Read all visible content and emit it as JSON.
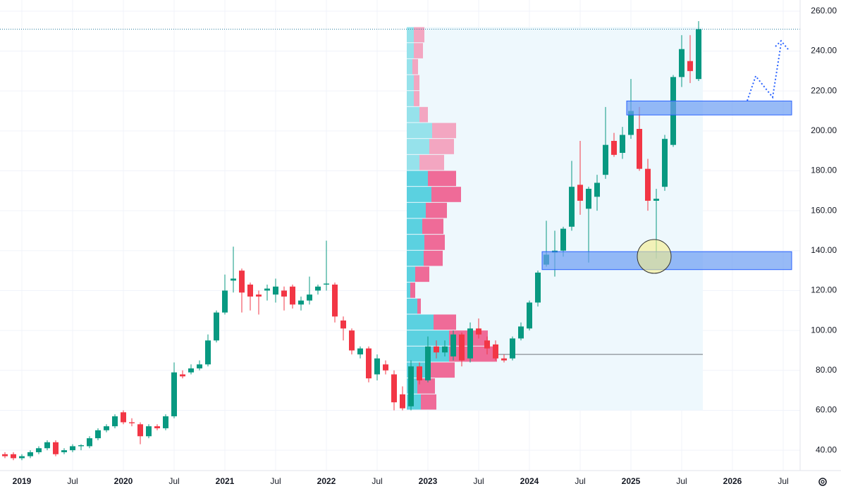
{
  "chart_data": {
    "type": "candlestick",
    "x": [
      "2018-11",
      "2018-12",
      "2019-01",
      "2019-02",
      "2019-03",
      "2019-04",
      "2019-05",
      "2019-06",
      "2019-07",
      "2019-08",
      "2019-09",
      "2019-10",
      "2019-11",
      "2019-12",
      "2020-01",
      "2020-02",
      "2020-03",
      "2020-04",
      "2020-05",
      "2020-06",
      "2020-07",
      "2020-08",
      "2020-09",
      "2020-10",
      "2020-11",
      "2020-12",
      "2021-01",
      "2021-02",
      "2021-03",
      "2021-04",
      "2021-05",
      "2021-06",
      "2021-07",
      "2021-08",
      "2021-09",
      "2021-10",
      "2021-11",
      "2021-12",
      "2022-01",
      "2022-02",
      "2022-03",
      "2022-04",
      "2022-05",
      "2022-06",
      "2022-07",
      "2022-08",
      "2022-09",
      "2022-10",
      "2022-11",
      "2022-12",
      "2023-01",
      "2023-02",
      "2023-03",
      "2023-04",
      "2023-05",
      "2023-06",
      "2023-07",
      "2023-08",
      "2023-09",
      "2023-10",
      "2023-11",
      "2023-12",
      "2024-01",
      "2024-02",
      "2024-03",
      "2024-04",
      "2024-05",
      "2024-06",
      "2024-07",
      "2024-08",
      "2024-09",
      "2024-10",
      "2024-11",
      "2024-12",
      "2025-01",
      "2025-02",
      "2025-03",
      "2025-04",
      "2025-05",
      "2025-06",
      "2025-07",
      "2025-08",
      "2025-09"
    ],
    "open": [
      38,
      38,
      36,
      37,
      39,
      41,
      44,
      39,
      40,
      42,
      42,
      46,
      50,
      52,
      59,
      54,
      53,
      47,
      52,
      51,
      57,
      78,
      79,
      81,
      83,
      95,
      109,
      125,
      130,
      123,
      118,
      120,
      118,
      120,
      122,
      113,
      115,
      120,
      123,
      123,
      105,
      100,
      88,
      91,
      78,
      83,
      78,
      68,
      62,
      82,
      75,
      92,
      89,
      87,
      98,
      86,
      101,
      95,
      93,
      86,
      86,
      96,
      101,
      114,
      133,
      139,
      140,
      152,
      173,
      161,
      167,
      178,
      195,
      189,
      198,
      201,
      181,
      165,
      172,
      193,
      227,
      235,
      226
    ],
    "high": [
      39,
      39,
      38,
      40,
      42,
      45,
      45,
      41,
      43,
      43,
      47,
      51,
      53,
      58,
      60,
      56,
      54,
      53,
      53,
      58,
      84,
      80,
      83,
      85,
      98,
      110,
      128,
      142,
      131,
      124,
      120,
      123,
      126,
      122,
      123,
      117,
      127,
      123,
      145,
      124,
      107,
      101,
      92,
      92,
      88,
      85,
      80,
      72,
      85,
      84,
      97,
      95,
      95,
      100,
      99,
      104,
      106,
      97,
      95,
      88,
      97,
      104,
      115,
      130,
      155,
      150,
      152,
      185,
      195,
      172,
      178,
      212,
      199,
      202,
      226,
      212,
      186,
      171,
      198,
      228,
      248,
      248,
      255
    ],
    "low": [
      36,
      35,
      35,
      36,
      38,
      40,
      37,
      38,
      39,
      40,
      41,
      45,
      49,
      51,
      53,
      52,
      43,
      46,
      50,
      50,
      56,
      76,
      78,
      80,
      82,
      94,
      108,
      119,
      109,
      110,
      108,
      115,
      114,
      110,
      111,
      110,
      113,
      118,
      120,
      104,
      95,
      88,
      86,
      74,
      75,
      78,
      60,
      60,
      60,
      73,
      74,
      86,
      87,
      85,
      82,
      84,
      96,
      88,
      85,
      84,
      85,
      95,
      100,
      112,
      132,
      127,
      137,
      150,
      158,
      134,
      160,
      176,
      187,
      186,
      196,
      180,
      160,
      136,
      170,
      192,
      222,
      224,
      225
    ],
    "close": [
      37,
      36,
      37,
      39,
      41,
      44,
      38,
      40,
      42,
      42.5,
      46,
      50,
      52,
      57,
      54,
      53.5,
      47,
      52,
      51,
      57,
      79,
      77,
      81,
      83,
      95,
      109,
      120,
      126,
      119,
      117,
      117,
      121,
      122,
      117,
      113,
      115,
      118,
      122,
      123.5,
      107,
      101,
      90,
      91,
      76,
      86,
      80,
      64,
      61,
      82,
      75,
      92,
      89,
      92,
      98,
      85,
      101,
      98,
      91,
      86,
      85,
      96,
      102,
      114,
      129,
      138,
      140,
      151,
      172,
      165,
      171,
      174,
      193,
      188,
      198,
      210,
      181,
      165,
      166,
      196,
      227,
      241,
      230,
      251
    ],
    "up_color": "#089981",
    "down_color": "#f23645",
    "ylim": [
      29.8,
      265.6
    ],
    "yticks": [
      {
        "value": 40,
        "label": "40.00"
      },
      {
        "value": 60,
        "label": "60.00"
      },
      {
        "value": 80,
        "label": "80.00"
      },
      {
        "value": 100,
        "label": "100.00"
      },
      {
        "value": 120,
        "label": "120.00"
      },
      {
        "value": 140,
        "label": "140.00"
      },
      {
        "value": 160,
        "label": "160.00"
      },
      {
        "value": 180,
        "label": "180.00"
      },
      {
        "value": 200,
        "label": "200.00"
      },
      {
        "value": 220,
        "label": "220.00"
      },
      {
        "value": 240,
        "label": "240.00"
      },
      {
        "value": 260,
        "label": "260.00"
      }
    ],
    "xlim": [
      "2018-10",
      "2026-09"
    ],
    "xticks": [
      {
        "value": "2019-01",
        "label": "2019"
      },
      {
        "value": "2019-07",
        "label": "Jul"
      },
      {
        "value": "2020-01",
        "label": "2020"
      },
      {
        "value": "2020-07",
        "label": "Jul"
      },
      {
        "value": "2021-01",
        "label": "2021"
      },
      {
        "value": "2021-07",
        "label": "Jul"
      },
      {
        "value": "2022-01",
        "label": "2022"
      },
      {
        "value": "2022-07",
        "label": "Jul"
      },
      {
        "value": "2023-01",
        "label": "2023"
      },
      {
        "value": "2023-07",
        "label": "Jul"
      },
      {
        "value": "2024-01",
        "label": "2024"
      },
      {
        "value": "2024-07",
        "label": "Jul"
      },
      {
        "value": "2025-01",
        "label": "2025"
      },
      {
        "value": "2025-07",
        "label": "Jul"
      },
      {
        "value": "2026-01",
        "label": "2026"
      },
      {
        "value": "2026-07",
        "label": "Jul"
      }
    ],
    "grid": true,
    "price_line": 251,
    "price_line_color": "#2a7f9e",
    "profile": {
      "from": "2022-11",
      "to": "2025-09",
      "bins": [
        60,
        68,
        76,
        84,
        92,
        100,
        108,
        116,
        124,
        132,
        140,
        148,
        156,
        164,
        172,
        180,
        188,
        196,
        204,
        212,
        220,
        228,
        236,
        244,
        252
      ],
      "up": [
        20,
        15,
        33,
        60,
        60,
        38,
        15,
        5,
        12,
        24,
        25,
        22,
        27,
        35,
        30,
        18,
        32,
        36,
        18,
        10,
        10,
        8,
        10,
        10
      ],
      "down": [
        22,
        25,
        35,
        68,
        55,
        32,
        5,
        7,
        20,
        27,
        29,
        30,
        30,
        42,
        40,
        35,
        35,
        34,
        12,
        8,
        8,
        8,
        13,
        15
      ],
      "value_area": [
        60,
        180
      ],
      "up_color": "#5bd1e0",
      "down_color": "#ef6b98",
      "up_color_outside": "#96e2eb",
      "down_color_outside": "#f3a6c1",
      "background": "#eef8fd",
      "poc": 88
    },
    "zones": [
      {
        "low": 130.5,
        "high": 139.5,
        "from": "2024-03",
        "to": "2026-08"
      },
      {
        "low": 208,
        "high": 215,
        "from": "2025-01",
        "to": "2026-08"
      }
    ],
    "zone_color": "#6b9cf2"
  }
}
